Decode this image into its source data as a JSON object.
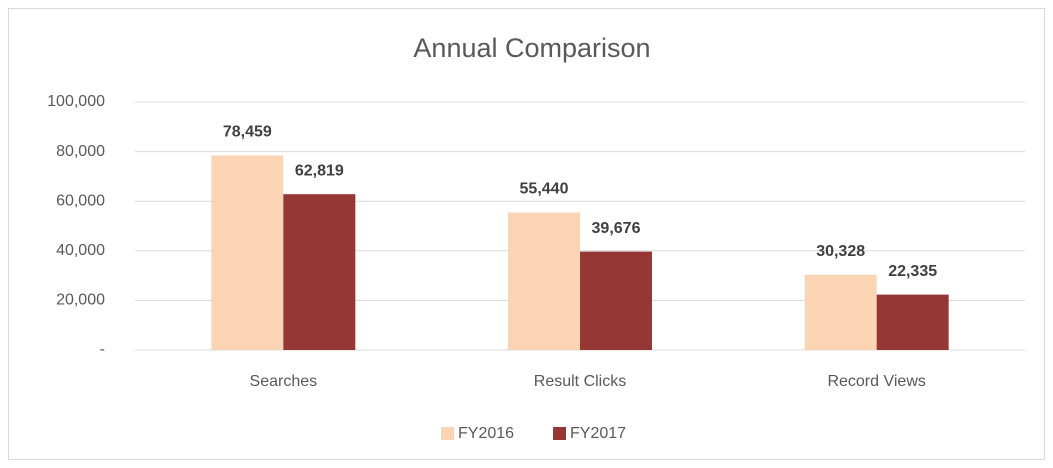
{
  "chart_data": {
    "type": "bar",
    "title": "Annual Comparison",
    "categories": [
      "Searches",
      "Result Clicks",
      "Record Views"
    ],
    "series": [
      {
        "name": "FY2016",
        "color": "#fbd4b4",
        "values": [
          78459,
          55440,
          30328
        ],
        "value_labels": [
          "78,459",
          "55,440",
          "30,328"
        ]
      },
      {
        "name": "FY2017",
        "color": "#953735",
        "values": [
          62819,
          39676,
          22335
        ],
        "value_labels": [
          "62,819",
          "39,676",
          "22,335"
        ]
      }
    ],
    "ylim": [
      0,
      100000
    ],
    "yticks": [
      {
        "value": 0,
        "label": "-"
      },
      {
        "value": 20000,
        "label": "20,000"
      },
      {
        "value": 40000,
        "label": "40,000"
      },
      {
        "value": 60000,
        "label": "60,000"
      },
      {
        "value": 80000,
        "label": "80,000"
      },
      {
        "value": 100000,
        "label": "100,000"
      }
    ],
    "grid": true,
    "legend": "bottom"
  }
}
